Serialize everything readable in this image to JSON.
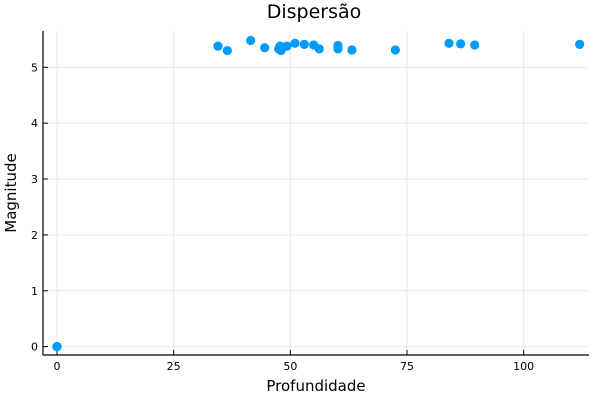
{
  "chart_data": {
    "type": "scatter",
    "title": "Dispersão",
    "xlabel": "Profundidade",
    "ylabel": "Magnitude",
    "xlim": [
      -3,
      114
    ],
    "ylim": [
      -0.15,
      5.65
    ],
    "xticks": [
      0,
      25,
      50,
      75,
      100
    ],
    "yticks": [
      0,
      1,
      2,
      3,
      4,
      5
    ],
    "grid": true,
    "legend": false,
    "marker_color": "#009af9",
    "series": [
      {
        "points": [
          {
            "x": 0,
            "y": 0
          },
          {
            "x": 0,
            "y": 0
          },
          {
            "x": 0,
            "y": 0
          },
          {
            "x": 34.5,
            "y": 5.38
          },
          {
            "x": 36.5,
            "y": 5.3
          },
          {
            "x": 41.5,
            "y": 5.48
          },
          {
            "x": 44.5,
            "y": 5.35
          },
          {
            "x": 47.5,
            "y": 5.33
          },
          {
            "x": 47.8,
            "y": 5.38
          },
          {
            "x": 48.0,
            "y": 5.3
          },
          {
            "x": 48.5,
            "y": 5.36
          },
          {
            "x": 49.3,
            "y": 5.38
          },
          {
            "x": 51.0,
            "y": 5.43
          },
          {
            "x": 53.0,
            "y": 5.41
          },
          {
            "x": 55.0,
            "y": 5.4
          },
          {
            "x": 56.2,
            "y": 5.33
          },
          {
            "x": 60.2,
            "y": 5.39
          },
          {
            "x": 60.2,
            "y": 5.33
          },
          {
            "x": 63.2,
            "y": 5.31
          },
          {
            "x": 72.5,
            "y": 5.31
          },
          {
            "x": 84.0,
            "y": 5.43
          },
          {
            "x": 86.5,
            "y": 5.42
          },
          {
            "x": 89.5,
            "y": 5.4
          },
          {
            "x": 112.0,
            "y": 5.41
          }
        ]
      }
    ]
  }
}
